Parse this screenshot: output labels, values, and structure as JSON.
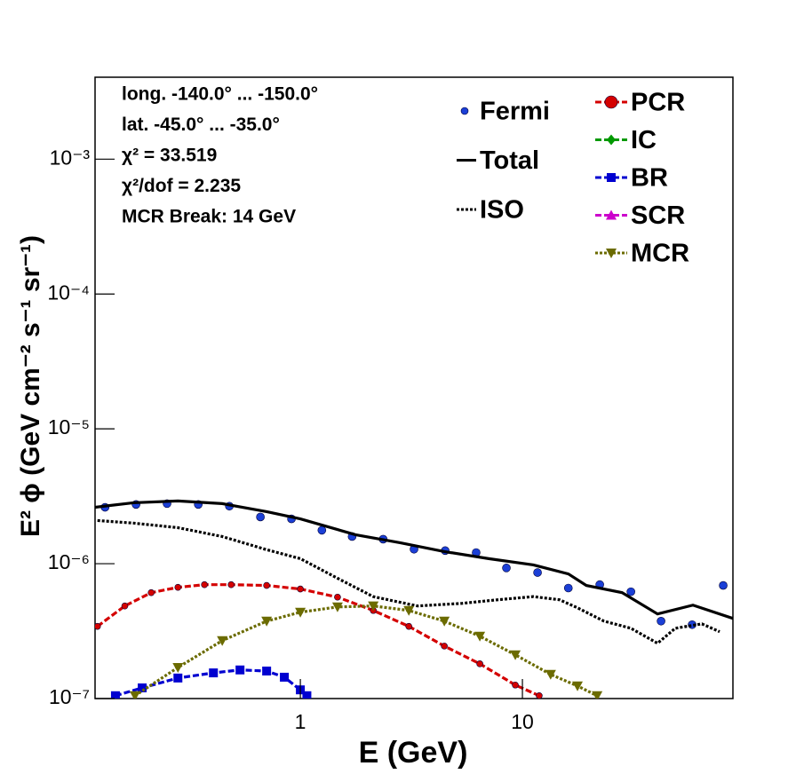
{
  "chart_data": {
    "type": "line",
    "xlabel": "E (GeV)",
    "ylabel": "E² ϕ (GeV cm⁻² s⁻¹ sr⁻¹)",
    "annotations": [
      "long. -140.0° ... -150.0°",
      "lat. -45.0° ... -35.0°",
      "χ² = 33.519",
      "χ²/dof = 2.235",
      "MCR Break: 14 GeV"
    ],
    "xscale": "log",
    "yscale": "log",
    "xlim": [
      0.119,
      88.7
    ],
    "ylim": [
      1e-07,
      0.00405
    ],
    "xticks": [
      1,
      10
    ],
    "yticks": [
      {
        "value": 1e-07,
        "label": "10⁻⁷"
      },
      {
        "value": 1e-06,
        "label": "10⁻⁶"
      },
      {
        "value": 1e-05,
        "label": "10⁻⁵"
      },
      {
        "value": 0.0001,
        "label": "10⁻⁴"
      },
      {
        "value": 0.001,
        "label": "10⁻³"
      }
    ],
    "series": [
      {
        "name": "Fermi",
        "color": "#1b3fd6",
        "line": "none",
        "marker": "circle",
        "x": [
          0.132,
          0.182,
          0.251,
          0.347,
          0.479,
          0.661,
          0.912,
          1.25,
          1.71,
          2.36,
          3.25,
          4.49,
          6.19,
          8.47,
          11.7,
          16.1,
          22.3,
          30.8,
          42.1,
          58.1,
          80.2
        ],
        "values": [
          2.62e-06,
          2.75e-06,
          2.79e-06,
          2.75e-06,
          2.67e-06,
          2.22e-06,
          2.15e-06,
          1.77e-06,
          1.59e-06,
          1.52e-06,
          1.28e-06,
          1.25e-06,
          1.21e-06,
          9.3e-07,
          8.6e-07,
          6.6e-07,
          7e-07,
          6.2e-07,
          3.75e-07,
          3.53e-07,
          6.9e-07
        ]
      },
      {
        "name": "Total",
        "color": "#000000",
        "line": "solid",
        "marker": "none",
        "x": [
          0.119,
          0.177,
          0.281,
          0.445,
          0.705,
          1,
          1.77,
          2.81,
          4.45,
          7.05,
          11.2,
          16.1,
          19.4,
          28.1,
          40.6,
          58.6,
          88.7
        ],
        "values": [
          2.62e-06,
          2.83e-06,
          2.92e-06,
          2.79e-06,
          2.43e-06,
          2.15e-06,
          1.64e-06,
          1.43e-06,
          1.23e-06,
          1.09e-06,
          9.8e-07,
          8.4e-07,
          6.9e-07,
          6.1e-07,
          4.24e-07,
          4.93e-07,
          3.93e-07
        ]
      },
      {
        "name": "ISO",
        "color": "#000000",
        "line": "dotted",
        "marker": "none",
        "x": [
          0.122,
          0.177,
          0.281,
          0.445,
          0.705,
          1,
          1.47,
          2.13,
          3.37,
          5.35,
          7.73,
          11.2,
          14.7,
          17.7,
          23.3,
          30.8,
          40.6,
          48.8,
          64.3,
          77.3
        ],
        "values": [
          2.09e-06,
          2e-06,
          1.85e-06,
          1.59e-06,
          1.27e-06,
          1.09e-06,
          7.8e-07,
          5.7e-07,
          4.86e-07,
          5.08e-07,
          5.4e-07,
          5.7e-07,
          5.4e-07,
          4.71e-07,
          3.75e-07,
          3.32e-07,
          2.57e-07,
          3.32e-07,
          3.58e-07,
          3.13e-07
        ]
      },
      {
        "name": "PCR",
        "color": "#d40000",
        "line": "dashed",
        "marker": "circle",
        "x": [
          0.122,
          0.162,
          0.213,
          0.281,
          0.37,
          0.488,
          0.705,
          1,
          1.47,
          2.13,
          3.08,
          4.45,
          6.43,
          9.29,
          11.9
        ],
        "values": [
          3.43e-07,
          4.86e-07,
          6.1e-07,
          6.68e-07,
          6.99e-07,
          6.99e-07,
          6.9e-07,
          6.49e-07,
          5.65e-07,
          4.5e-07,
          3.43e-07,
          2.45e-07,
          1.81e-07,
          1.26e-07,
          1.05e-07
        ]
      },
      {
        "name": "IC",
        "color": "#009900",
        "line": "dashed",
        "marker": "diamond",
        "x": [],
        "values": []
      },
      {
        "name": "BR",
        "color": "#0000d0",
        "line": "dashed",
        "marker": "square",
        "x": [
          0.147,
          0.194,
          0.281,
          0.406,
          0.535,
          0.705,
          0.847,
          1,
          1.07
        ],
        "values": [
          1.05e-07,
          1.2e-07,
          1.42e-07,
          1.55e-07,
          1.63e-07,
          1.6e-07,
          1.44e-07,
          1.16e-07,
          1.05e-07
        ]
      },
      {
        "name": "SCR",
        "color": "#cc00cc",
        "line": "dashed",
        "marker": "triangle-up",
        "x": [],
        "values": []
      },
      {
        "name": "MCR",
        "color": "#6b6b00",
        "line": "dotted",
        "marker": "triangle-down",
        "x": [
          0.18,
          0.281,
          0.445,
          0.705,
          1,
          1.47,
          2.13,
          3.08,
          4.45,
          6.43,
          9.29,
          13.4,
          17.7,
          21.7
        ],
        "values": [
          1.05e-07,
          1.7e-07,
          2.69e-07,
          3.75e-07,
          4.37e-07,
          4.78e-07,
          4.86e-07,
          4.5e-07,
          3.75e-07,
          2.9e-07,
          2.11e-07,
          1.51e-07,
          1.24e-07,
          1.05e-07
        ]
      }
    ]
  }
}
